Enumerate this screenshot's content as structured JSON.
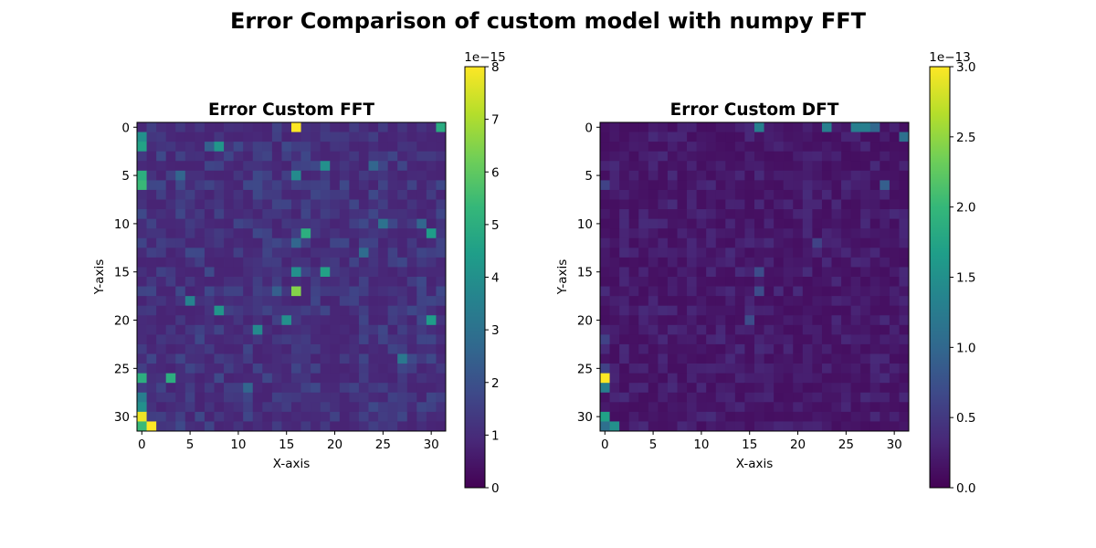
{
  "suptitle": "Error Comparison of custom model with numpy FFT",
  "colormap": "viridis",
  "chart_data": [
    {
      "type": "heatmap",
      "title": "Error Custom FFT",
      "xlabel": "X-axis",
      "ylabel": "Y-axis",
      "size": [
        32,
        32
      ],
      "xticks": [
        "0",
        "5",
        "10",
        "15",
        "20",
        "25",
        "30"
      ],
      "yticks": [
        "0",
        "5",
        "10",
        "15",
        "20",
        "25",
        "30"
      ],
      "colorbar": {
        "vmin": 0,
        "vmax": 8,
        "offset_label": "1e−15",
        "ticks": [
          "0",
          "1",
          "2",
          "3",
          "4",
          "5",
          "6",
          "7",
          "8"
        ]
      },
      "background_level": 0.8,
      "noise_amplitude": 1.0,
      "peaks": [
        {
          "x": 16,
          "y": 0,
          "v": 8.0
        },
        {
          "x": 31,
          "y": 0,
          "v": 4.9
        },
        {
          "x": 0,
          "y": 1,
          "v": 4.0
        },
        {
          "x": 0,
          "y": 2,
          "v": 4.6
        },
        {
          "x": 8,
          "y": 2,
          "v": 4.2
        },
        {
          "x": 7,
          "y": 2,
          "v": 2.4
        },
        {
          "x": 19,
          "y": 4,
          "v": 4.0
        },
        {
          "x": 24,
          "y": 4,
          "v": 2.6
        },
        {
          "x": 0,
          "y": 5,
          "v": 5.0
        },
        {
          "x": 0,
          "y": 6,
          "v": 5.4
        },
        {
          "x": 16,
          "y": 5,
          "v": 3.8
        },
        {
          "x": 4,
          "y": 5,
          "v": 2.6
        },
        {
          "x": 25,
          "y": 10,
          "v": 3.0
        },
        {
          "x": 29,
          "y": 10,
          "v": 2.6
        },
        {
          "x": 17,
          "y": 11,
          "v": 5.0
        },
        {
          "x": 30,
          "y": 11,
          "v": 4.4
        },
        {
          "x": 16,
          "y": 12,
          "v": 2.6
        },
        {
          "x": 23,
          "y": 13,
          "v": 2.8
        },
        {
          "x": 16,
          "y": 15,
          "v": 4.0
        },
        {
          "x": 19,
          "y": 15,
          "v": 4.6
        },
        {
          "x": 16,
          "y": 17,
          "v": 6.5
        },
        {
          "x": 14,
          "y": 17,
          "v": 2.4
        },
        {
          "x": 5,
          "y": 18,
          "v": 3.6
        },
        {
          "x": 8,
          "y": 19,
          "v": 4.2
        },
        {
          "x": 15,
          "y": 20,
          "v": 4.0
        },
        {
          "x": 30,
          "y": 20,
          "v": 4.4
        },
        {
          "x": 12,
          "y": 21,
          "v": 3.8
        },
        {
          "x": 27,
          "y": 24,
          "v": 3.2
        },
        {
          "x": 0,
          "y": 26,
          "v": 5.0
        },
        {
          "x": 3,
          "y": 26,
          "v": 5.0
        },
        {
          "x": 11,
          "y": 27,
          "v": 2.6
        },
        {
          "x": 0,
          "y": 28,
          "v": 3.4
        },
        {
          "x": 0,
          "y": 29,
          "v": 4.0
        },
        {
          "x": 0,
          "y": 30,
          "v": 7.8
        },
        {
          "x": 0,
          "y": 31,
          "v": 5.4
        },
        {
          "x": 1,
          "y": 31,
          "v": 8.0
        }
      ]
    },
    {
      "type": "heatmap",
      "title": "Error Custom DFT",
      "xlabel": "X-axis",
      "ylabel": "Y-axis",
      "size": [
        32,
        32
      ],
      "xticks": [
        "0",
        "5",
        "10",
        "15",
        "20",
        "25",
        "30"
      ],
      "yticks": [
        "0",
        "5",
        "10",
        "15",
        "20",
        "25",
        "30"
      ],
      "colorbar": {
        "vmin": 0,
        "vmax": 3.0,
        "offset_label": "1e−13",
        "ticks": [
          "0.0",
          "0.5",
          "1.0",
          "1.5",
          "2.0",
          "2.5",
          "3.0"
        ]
      },
      "background_level": 0.12,
      "noise_amplitude": 0.25,
      "peaks": [
        {
          "x": 16,
          "y": 0,
          "v": 1.3
        },
        {
          "x": 23,
          "y": 0,
          "v": 1.3
        },
        {
          "x": 26,
          "y": 0,
          "v": 1.3
        },
        {
          "x": 27,
          "y": 0,
          "v": 1.3
        },
        {
          "x": 28,
          "y": 0,
          "v": 1.0
        },
        {
          "x": 31,
          "y": 1,
          "v": 1.1
        },
        {
          "x": 0,
          "y": 6,
          "v": 0.6
        },
        {
          "x": 29,
          "y": 6,
          "v": 0.9
        },
        {
          "x": 22,
          "y": 12,
          "v": 0.6
        },
        {
          "x": 16,
          "y": 15,
          "v": 0.7
        },
        {
          "x": 16,
          "y": 17,
          "v": 0.7
        },
        {
          "x": 15,
          "y": 20,
          "v": 0.7
        },
        {
          "x": 0,
          "y": 22,
          "v": 0.6
        },
        {
          "x": 0,
          "y": 25,
          "v": 0.6
        },
        {
          "x": 0,
          "y": 26,
          "v": 3.0
        },
        {
          "x": 0,
          "y": 27,
          "v": 1.3
        },
        {
          "x": 0,
          "y": 30,
          "v": 1.7
        },
        {
          "x": 1,
          "y": 31,
          "v": 1.5
        },
        {
          "x": 0,
          "y": 31,
          "v": 1.1
        }
      ]
    }
  ]
}
